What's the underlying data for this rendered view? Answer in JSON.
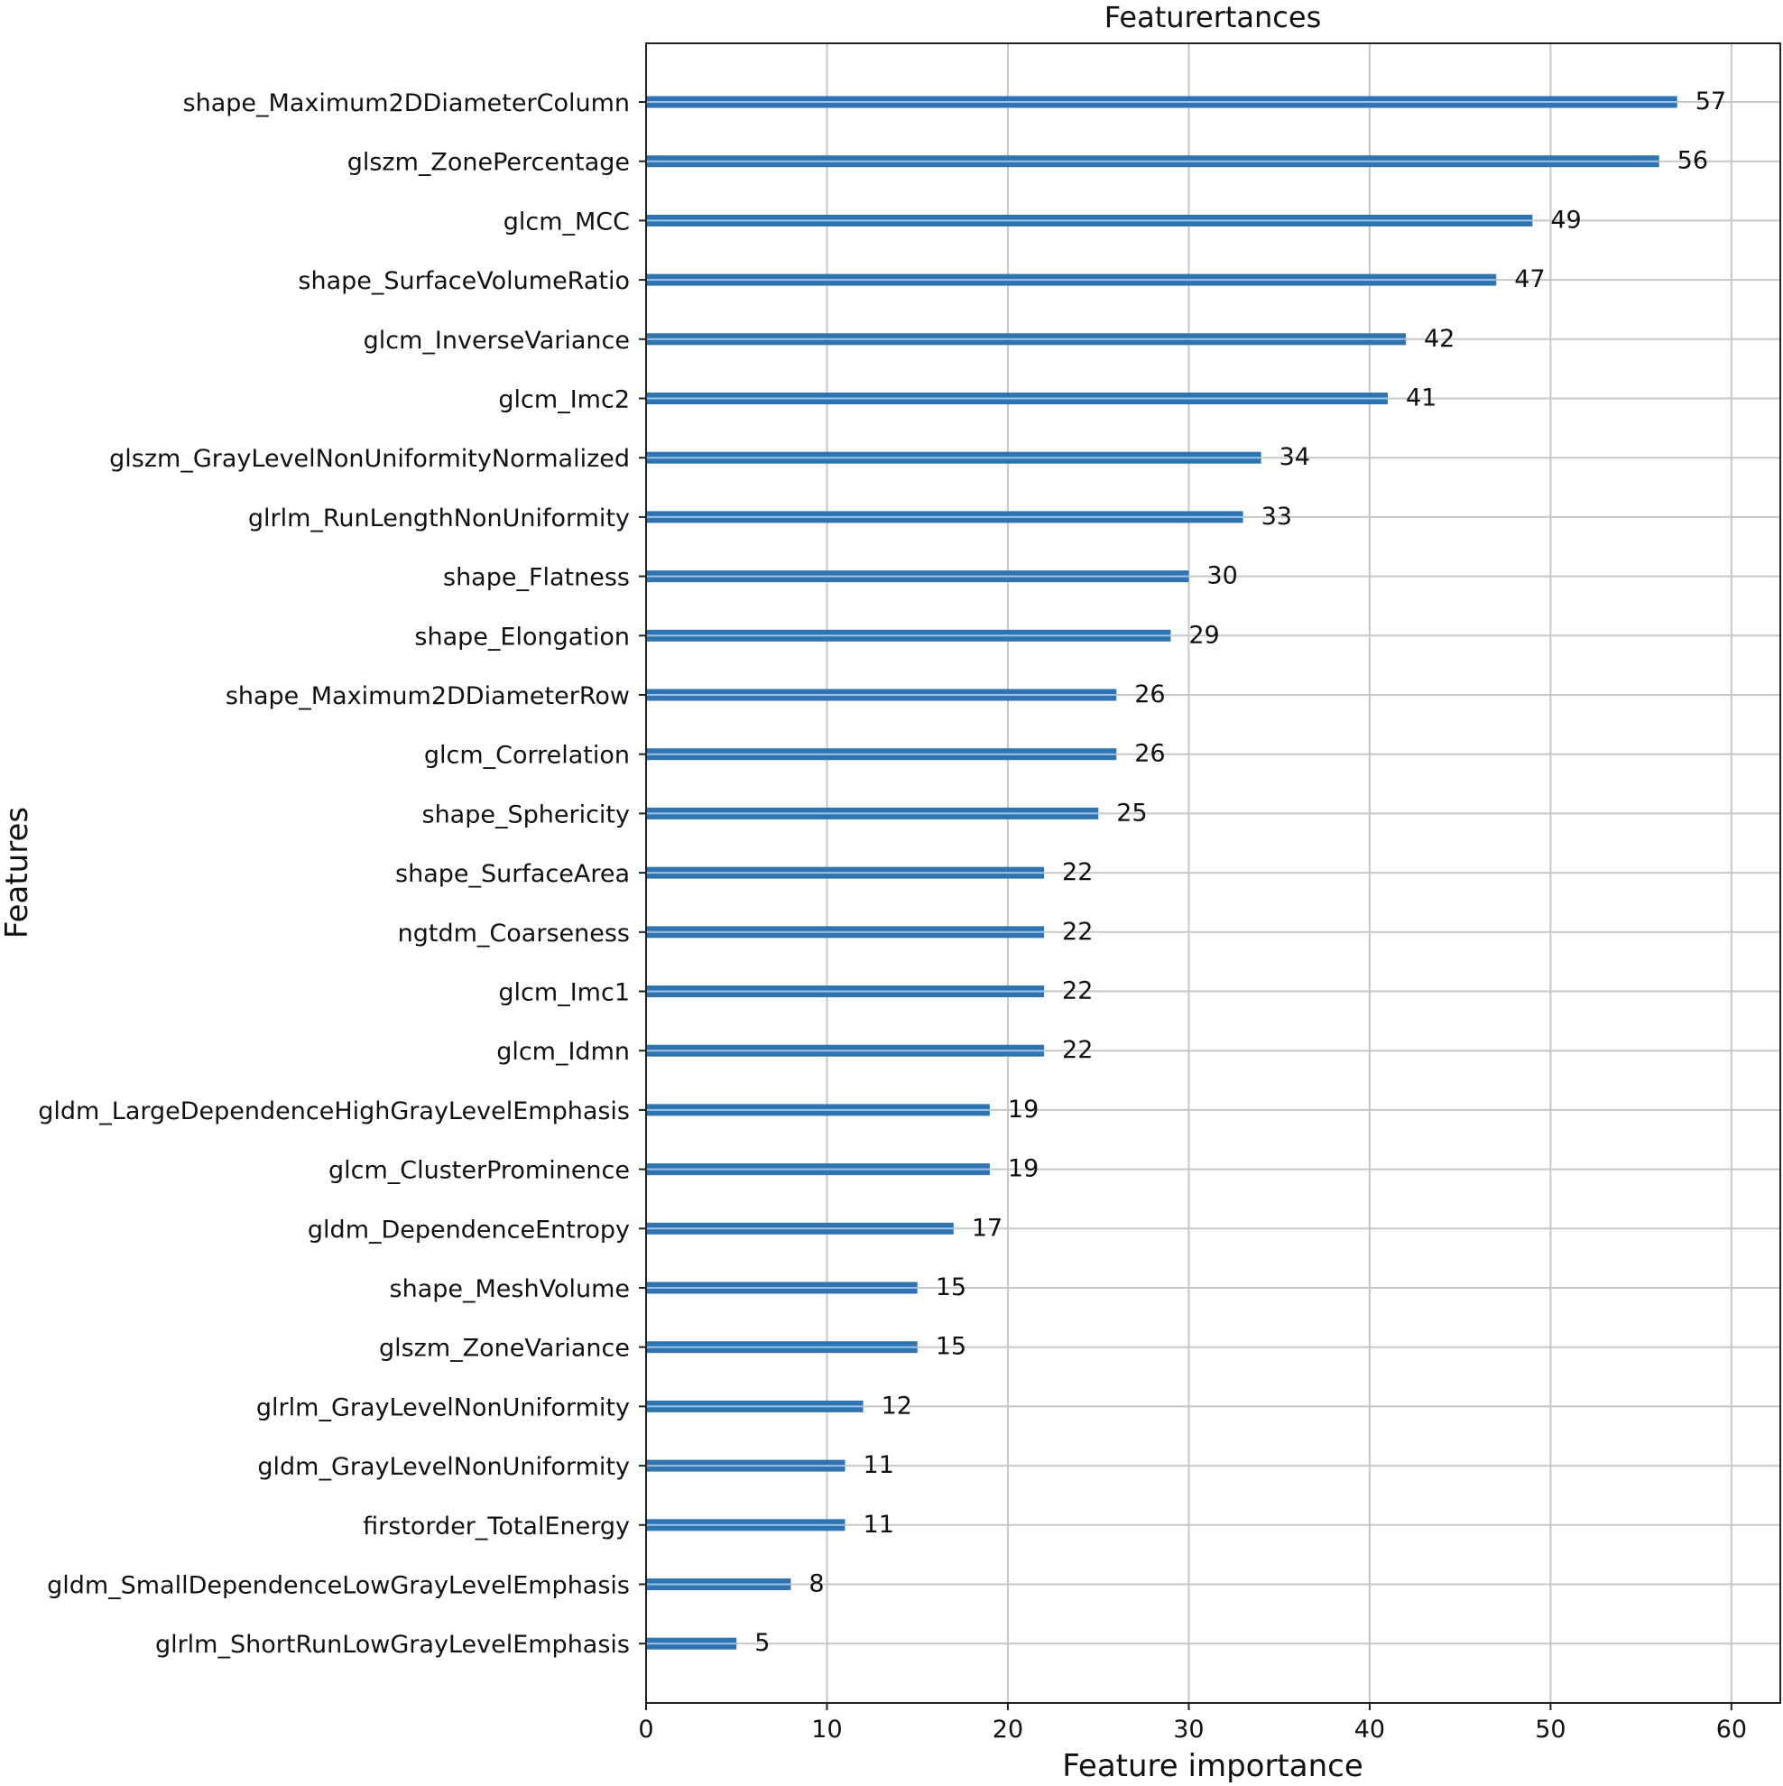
{
  "chart_data": {
    "type": "bar",
    "orientation": "horizontal",
    "title": "Featurertances",
    "xlabel": "Feature importance",
    "ylabel": "Features",
    "xlim": [
      0,
      62.7
    ],
    "xticks": [
      0,
      10,
      20,
      30,
      40,
      50,
      60
    ],
    "grid": true,
    "bar_color": "#2f74b0",
    "categories": [
      "shape_Maximum2DDiameterColumn",
      "glszm_ZonePercentage",
      "glcm_MCC",
      "shape_SurfaceVolumeRatio",
      "glcm_InverseVariance",
      "glcm_Imc2",
      "glszm_GrayLevelNonUniformityNormalized",
      "glrlm_RunLengthNonUniformity",
      "shape_Flatness",
      "shape_Elongation",
      "shape_Maximum2DDiameterRow",
      "glcm_Correlation",
      "shape_Sphericity",
      "shape_SurfaceArea",
      "ngtdm_Coarseness",
      "glcm_Imc1",
      "glcm_Idmn",
      "gldm_LargeDependenceHighGrayLevelEmphasis",
      "glcm_ClusterProminence",
      "gldm_DependenceEntropy",
      "shape_MeshVolume",
      "glszm_ZoneVariance",
      "glrlm_GrayLevelNonUniformity",
      "gldm_GrayLevelNonUniformity",
      "firstorder_TotalEnergy",
      "gldm_SmallDependenceLowGrayLevelEmphasis",
      "glrlm_ShortRunLowGrayLevelEmphasis"
    ],
    "values": [
      57,
      56,
      49,
      47,
      42,
      41,
      34,
      33,
      30,
      29,
      26,
      26,
      25,
      22,
      22,
      22,
      22,
      19,
      19,
      17,
      15,
      15,
      12,
      11,
      11,
      8,
      5
    ]
  }
}
